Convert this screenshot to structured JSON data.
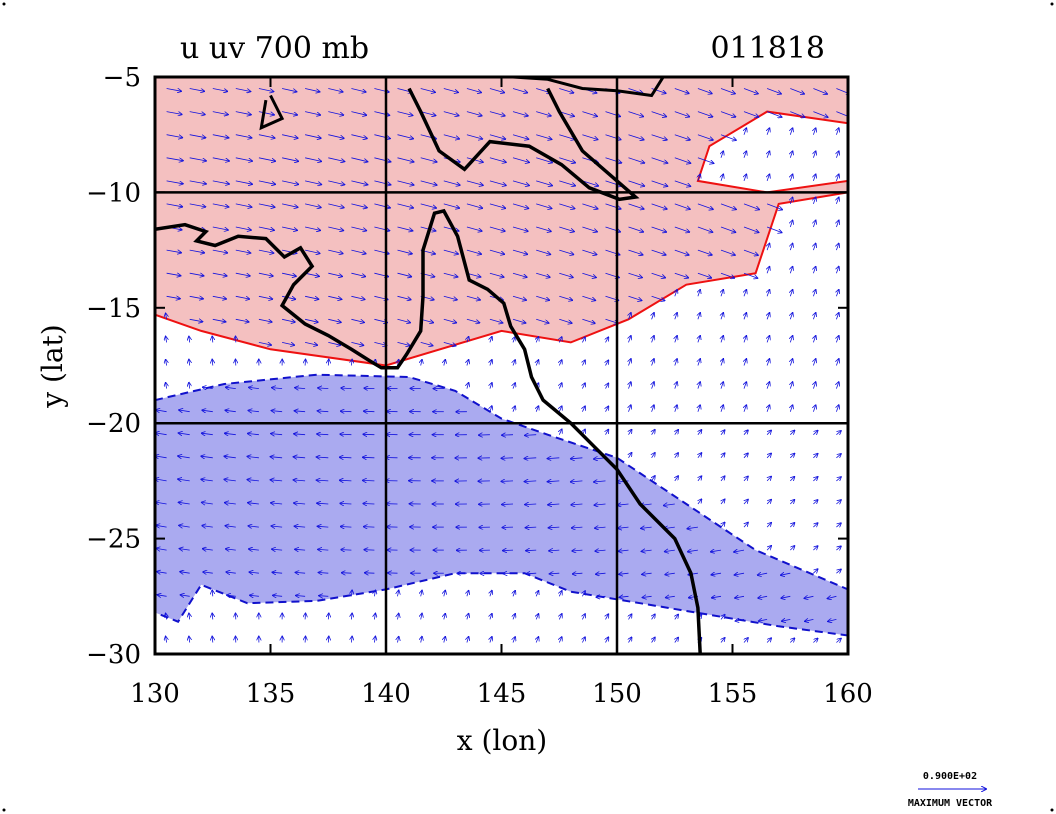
{
  "chart_data": {
    "type": "contour+vector",
    "title": "u uv 700 mb",
    "title_right": "011818",
    "xlabel": "x (lon)",
    "ylabel": "y (lat)",
    "xlim": [
      130,
      160
    ],
    "ylim": [
      -30,
      -5
    ],
    "xticks": [
      130,
      135,
      140,
      145,
      150,
      155,
      160
    ],
    "yticks": [
      -5,
      -10,
      -15,
      -20,
      -25,
      -30
    ],
    "xtick_labels": [
      "130",
      "135",
      "140",
      "145",
      "150",
      "155",
      "160"
    ],
    "ytick_labels": [
      "−5",
      "−10",
      "−15",
      "−20",
      "−25",
      "−30"
    ],
    "gridlines_lon": [
      140,
      150
    ],
    "gridlines_lat": [
      -10,
      -20
    ],
    "positive_fill_color": "#f4c0c0",
    "negative_fill_color": "#aaaaf0",
    "positive_contour_color": "#ee1111",
    "negative_contour_color": "#1111cc",
    "vector_color": "#1111dd",
    "coast_color": "#000000",
    "positive_region": [
      [
        130,
        -5
      ],
      [
        160,
        -5
      ],
      [
        160,
        -7
      ],
      [
        156.5,
        -6.5
      ],
      [
        154,
        -8
      ],
      [
        153.5,
        -9.5
      ],
      [
        156.5,
        -10
      ],
      [
        160,
        -9.5
      ],
      [
        160,
        -10
      ],
      [
        157,
        -10.5
      ],
      [
        156,
        -13.5
      ],
      [
        153,
        -14
      ],
      [
        150.5,
        -15.5
      ],
      [
        148,
        -16.5
      ],
      [
        145,
        -16
      ],
      [
        140,
        -17.5
      ],
      [
        135,
        -16.8
      ],
      [
        132,
        -16
      ],
      [
        130,
        -15.3
      ]
    ],
    "negative_region": [
      [
        130,
        -19
      ],
      [
        133,
        -18.3
      ],
      [
        137,
        -17.9
      ],
      [
        141,
        -18
      ],
      [
        143,
        -18.6
      ],
      [
        145,
        -19.8
      ],
      [
        147,
        -20.5
      ],
      [
        150,
        -21.5
      ],
      [
        153,
        -23.5
      ],
      [
        156,
        -25.5
      ],
      [
        160,
        -27.2
      ],
      [
        160,
        -29.2
      ],
      [
        157,
        -28.8
      ],
      [
        154,
        -28.3
      ],
      [
        151,
        -27.8
      ],
      [
        148,
        -27.3
      ],
      [
        146,
        -26.5
      ],
      [
        143,
        -26.5
      ],
      [
        140,
        -27.2
      ],
      [
        137,
        -27.7
      ],
      [
        134,
        -27.8
      ],
      [
        132,
        -27
      ],
      [
        131,
        -28.6
      ],
      [
        130,
        -28.2
      ]
    ],
    "coastline_west": [
      [
        130,
        -11.6
      ],
      [
        131.3,
        -11.4
      ],
      [
        132.2,
        -11.7
      ],
      [
        131.8,
        -12.1
      ],
      [
        132.6,
        -12.3
      ],
      [
        133.6,
        -11.9
      ],
      [
        134.8,
        -12.0
      ],
      [
        135.6,
        -12.8
      ],
      [
        136.3,
        -12.4
      ],
      [
        136.8,
        -13.2
      ],
      [
        136.0,
        -14.0
      ],
      [
        135.5,
        -14.9
      ],
      [
        136.5,
        -15.7
      ],
      [
        137.5,
        -16.2
      ],
      [
        138.5,
        -16.8
      ],
      [
        139.3,
        -17.3
      ],
      [
        139.8,
        -17.6
      ],
      [
        140.5,
        -17.6
      ],
      [
        140.9,
        -17.0
      ],
      [
        141.5,
        -16.0
      ],
      [
        141.6,
        -14.5
      ],
      [
        141.6,
        -12.5
      ],
      [
        142.1,
        -10.9
      ],
      [
        142.5,
        -10.8
      ],
      [
        143.1,
        -11.9
      ],
      [
        143.6,
        -13.8
      ],
      [
        144.4,
        -14.2
      ],
      [
        145.1,
        -14.8
      ],
      [
        145.4,
        -15.8
      ],
      [
        146.0,
        -16.8
      ],
      [
        146.3,
        -18.0
      ],
      [
        146.8,
        -19.0
      ],
      [
        148.0,
        -20.0
      ],
      [
        149.0,
        -21.0
      ],
      [
        150.0,
        -22.0
      ],
      [
        151.0,
        -23.5
      ],
      [
        152.5,
        -25.0
      ],
      [
        153.2,
        -26.5
      ],
      [
        153.5,
        -28.0
      ],
      [
        153.6,
        -30.0
      ]
    ],
    "coastline_png": [
      [
        141,
        -5.5
      ],
      [
        141.5,
        -6.5
      ],
      [
        142.3,
        -8.2
      ],
      [
        143.4,
        -9.0
      ],
      [
        144.5,
        -7.8
      ],
      [
        146.2,
        -8.0
      ],
      [
        147.6,
        -8.8
      ],
      [
        148.8,
        -9.8
      ],
      [
        150.1,
        -10.3
      ],
      [
        150.8,
        -10.2
      ],
      [
        150.0,
        -9.5
      ],
      [
        148.5,
        -8.2
      ],
      [
        147.5,
        -6.5
      ],
      [
        147.0,
        -5.5
      ]
    ],
    "coastline_islands": [
      [
        [
          145.5,
          -5
        ],
        [
          147,
          -5.1
        ],
        [
          148.5,
          -5.5
        ],
        [
          150,
          -5.6
        ],
        [
          151.5,
          -5.8
        ],
        [
          152,
          -5
        ]
      ],
      [
        [
          135,
          -5.8
        ],
        [
          135.5,
          -6.8
        ],
        [
          134.6,
          -7.2
        ],
        [
          134.8,
          -6
        ]
      ]
    ],
    "vector_legend": {
      "value_label": "0.900E+02",
      "caption": "MAXIMUM VECTOR"
    }
  }
}
